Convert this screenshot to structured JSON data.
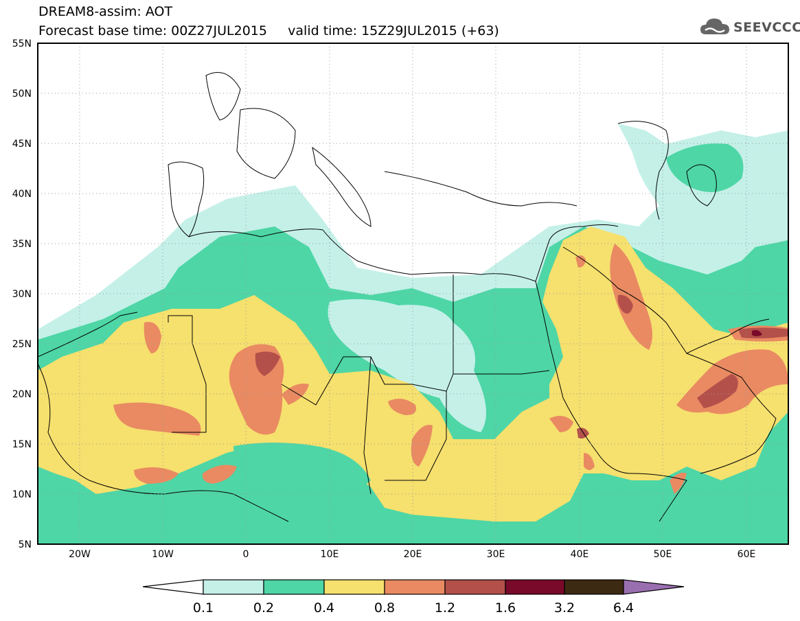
{
  "header": {
    "line1": "DREAM8-assim: AOT",
    "line2": "Forecast base time: 00Z27JUL2015     valid time: 15Z29JUL2015 (+63)"
  },
  "logo": {
    "text": "SEEVCCC",
    "icon": "cloud-icon"
  },
  "map": {
    "lon_range": [
      -25,
      65
    ],
    "lat_range": [
      5,
      55
    ],
    "lat_labels": [
      "55N",
      "50N",
      "45N",
      "40N",
      "35N",
      "30N",
      "25N",
      "20N",
      "15N",
      "10N",
      "5N"
    ],
    "lon_labels": [
      "20W",
      "10W",
      "0",
      "10E",
      "20E",
      "30E",
      "40E",
      "50E",
      "60E"
    ],
    "ocean_color": "#ffffff",
    "grid": "dotted"
  },
  "colorbar": {
    "labels": [
      "0.1",
      "0.2",
      "0.4",
      "0.8",
      "1.2",
      "1.6",
      "3.2",
      "6.4"
    ],
    "colors": [
      "#ffffff",
      "#c4f0e8",
      "#4ed6a6",
      "#f6e06e",
      "#e98a62",
      "#b3504a",
      "#7a0a2a",
      "#3d2a12",
      "#9a6fb0"
    ]
  }
}
